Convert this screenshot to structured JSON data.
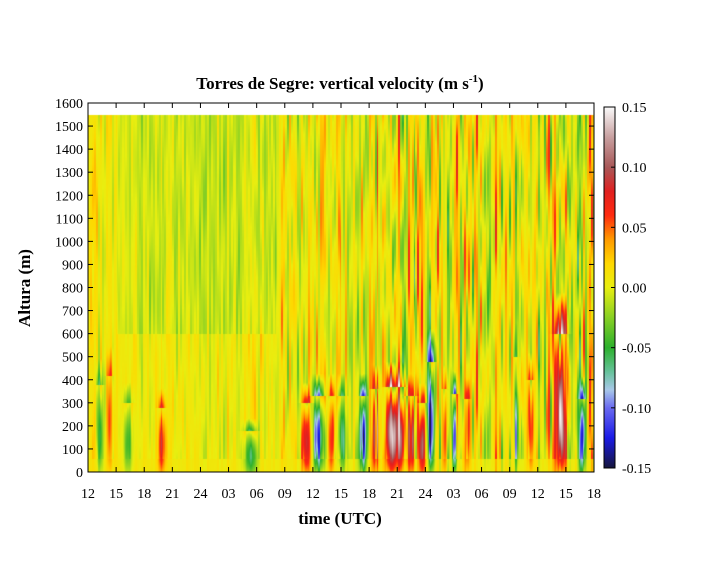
{
  "chart_data": {
    "type": "heatmap",
    "title_main": "Torres de Segre: vertical velocity (m s",
    "title_sup": "-1",
    "title_end": ")",
    "xlabel": "time (UTC)",
    "ylabel": "Altura (m)",
    "x_tick_labels": [
      "12",
      "15",
      "18",
      "21",
      "24",
      "03",
      "06",
      "09",
      "12",
      "15",
      "18",
      "21",
      "24",
      "03",
      "06",
      "09",
      "12",
      "15",
      "18"
    ],
    "ylim": [
      0,
      1600
    ],
    "y_ticks": [
      0,
      100,
      200,
      300,
      400,
      500,
      600,
      700,
      800,
      900,
      1000,
      1100,
      1200,
      1300,
      1400,
      1500,
      1600
    ],
    "data_height_range": [
      0,
      1550
    ],
    "colorbar": {
      "range": [
        -0.15,
        0.15
      ],
      "tick_labels": [
        "0.15",
        "0.10",
        "0.05",
        "0.00",
        "-0.05",
        "-0.10",
        "-0.15"
      ],
      "tick_values": [
        0.15,
        0.1,
        0.05,
        0.0,
        -0.05,
        -0.1,
        -0.15
      ],
      "colors": [
        {
          "v": -0.15,
          "c": "#16163c"
        },
        {
          "v": -0.125,
          "c": "#1a1ae6"
        },
        {
          "v": -0.1,
          "c": "#6a6af0"
        },
        {
          "v": -0.085,
          "c": "#a8c8e8"
        },
        {
          "v": -0.07,
          "c": "#66c29a"
        },
        {
          "v": -0.05,
          "c": "#2cb02c"
        },
        {
          "v": -0.025,
          "c": "#88d024"
        },
        {
          "v": 0.0,
          "c": "#e8ee10"
        },
        {
          "v": 0.02,
          "c": "#ffd800"
        },
        {
          "v": 0.04,
          "c": "#ff9a00"
        },
        {
          "v": 0.06,
          "c": "#ff2a10"
        },
        {
          "v": 0.08,
          "c": "#e02020"
        },
        {
          "v": 0.1,
          "c": "#a85858"
        },
        {
          "v": 0.125,
          "c": "#c8a0a0"
        },
        {
          "v": 0.15,
          "c": "#fafafa"
        }
      ]
    }
  }
}
